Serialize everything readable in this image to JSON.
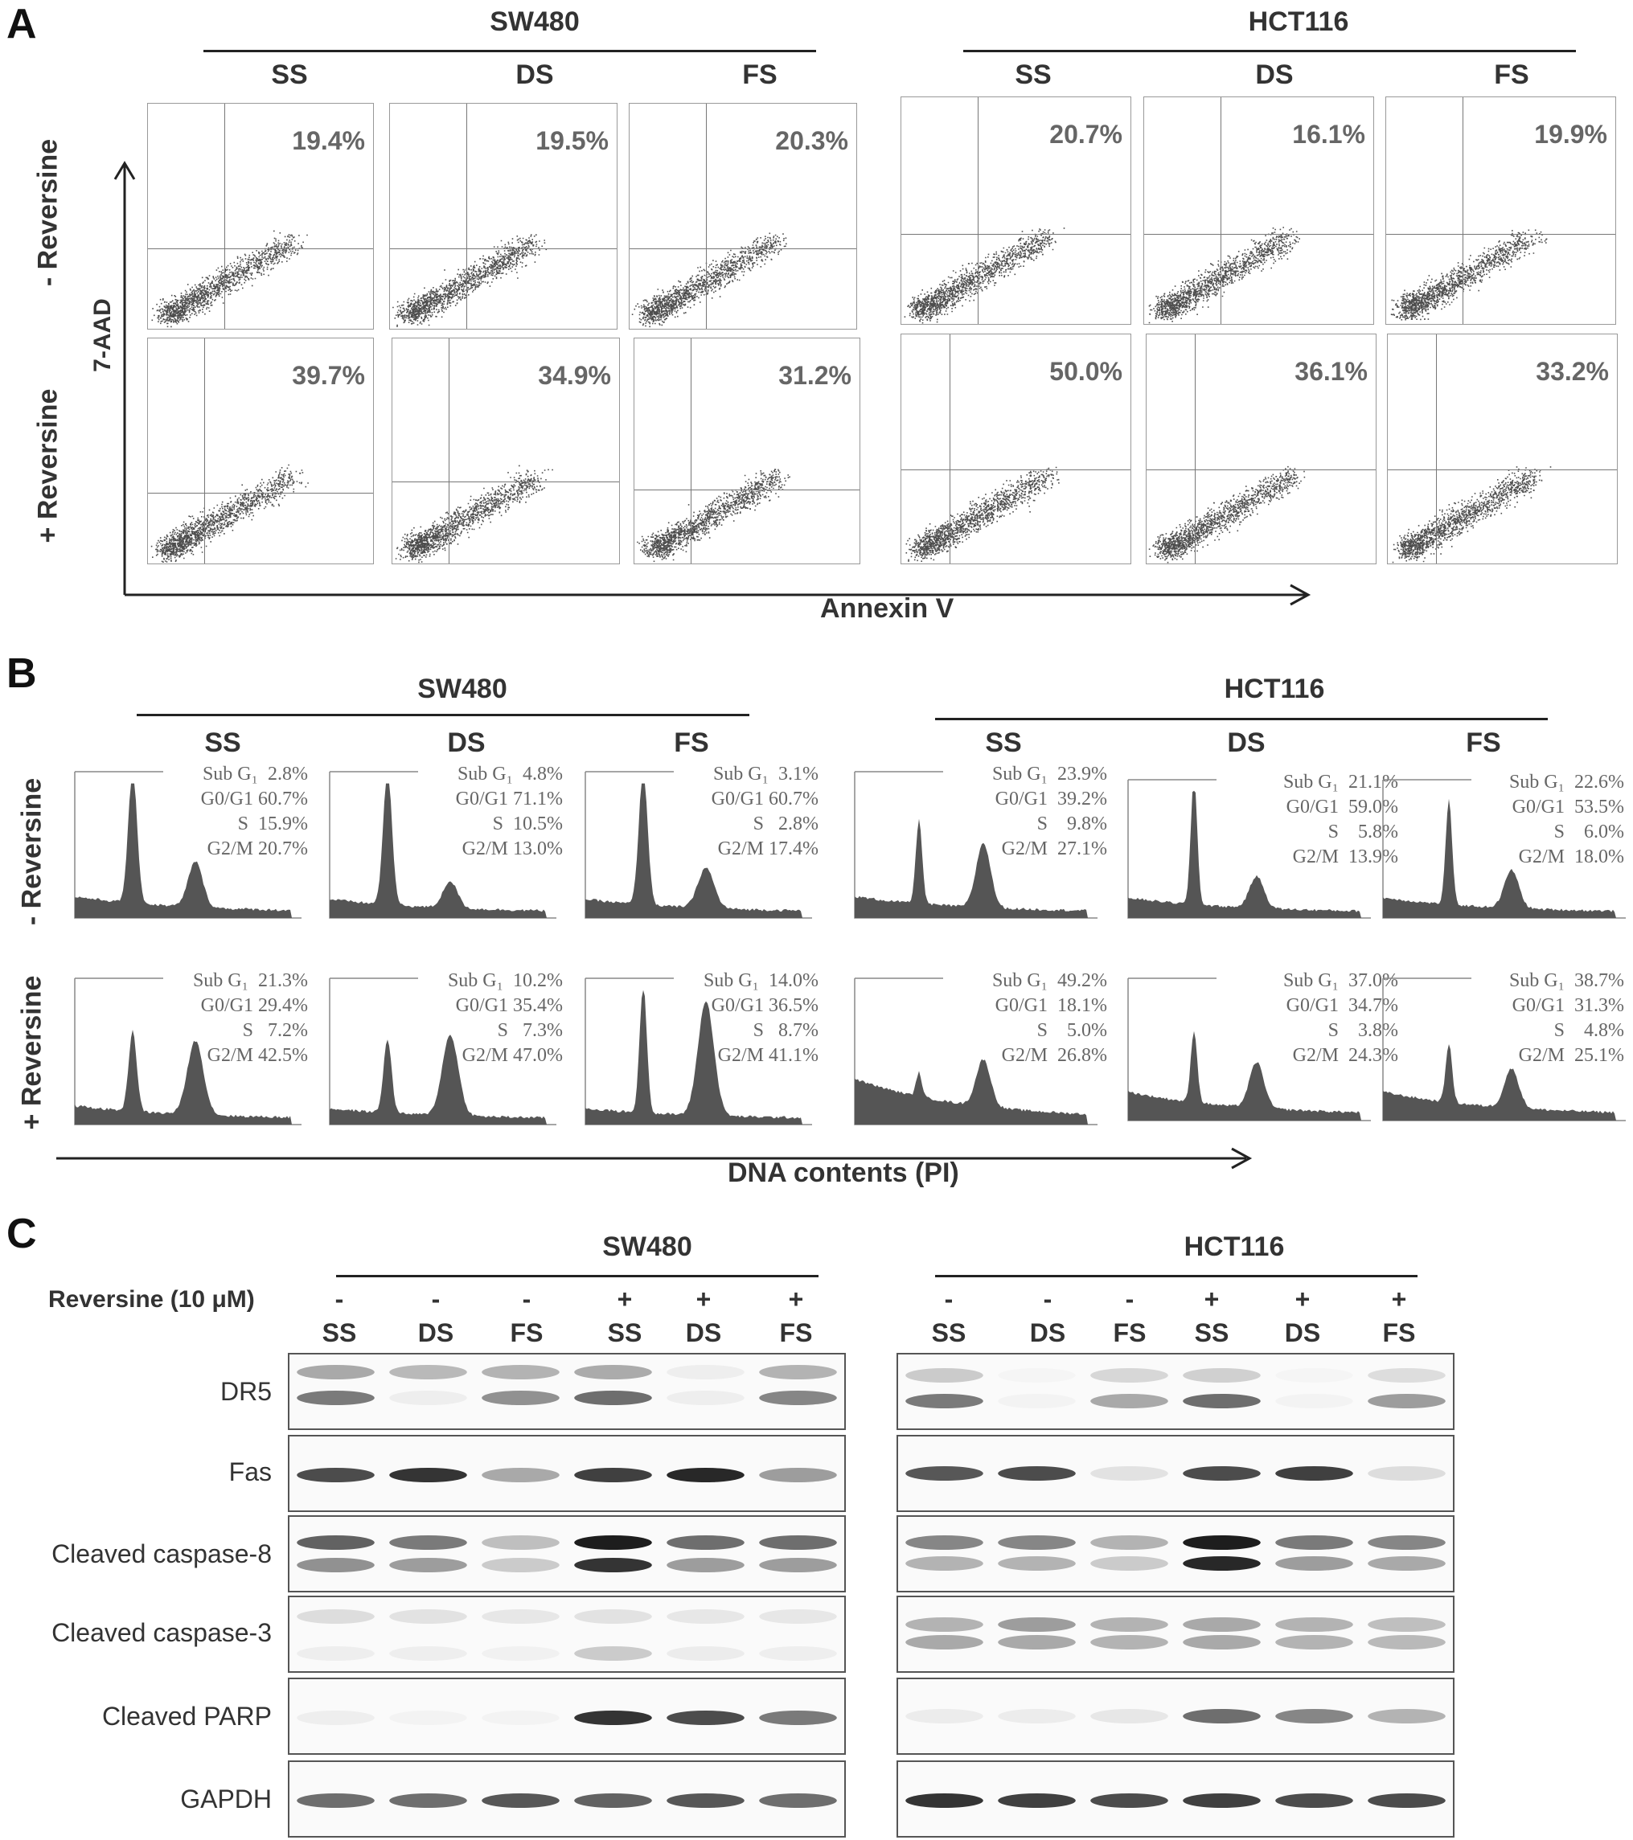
{
  "panelA": {
    "letter": "A",
    "groups": [
      "SW480",
      "HCT116"
    ],
    "columns": [
      "SS",
      "DS",
      "FS"
    ],
    "rows": [
      "- Reversine",
      "+ Reversine"
    ],
    "y_axis": "7-AAD",
    "x_axis": "Annexin V",
    "pct": {
      "sw480_minus": [
        "19.4%",
        "19.5%",
        "20.3%"
      ],
      "hct116_minus": [
        "20.7%",
        "16.1%",
        "19.9%"
      ],
      "sw480_plus": [
        "39.7%",
        "34.9%",
        "31.2%"
      ],
      "hct116_plus": [
        "50.0%",
        "36.1%",
        "33.2%"
      ]
    }
  },
  "panelB": {
    "letter": "B",
    "groups": [
      "SW480",
      "HCT116"
    ],
    "columns": [
      "SS",
      "DS",
      "FS"
    ],
    "rows": [
      "- Reversine",
      "+ Reversine"
    ],
    "x_axis": "DNA contents (PI)",
    "stats": {
      "sw480_minus": [
        "Sub G₁  2.8%\nG0/G1 60.7%\nS  15.9%\nG2/M 20.7%",
        "Sub G₁  4.8%\nG0/G1 71.1%\nS  10.5%\nG2/M 13.0%",
        "Sub G₁  3.1%\nG0/G1 60.7%\nS   2.8%\nG2/M 17.4%"
      ],
      "hct116_minus": [
        "Sub G₁  23.9%\nG0/G1  39.2%\nS    9.8%\nG2/M  27.1%",
        "Sub G₁  21.1%\nG0/G1  59.0%\nS    5.8%\nG2/M  13.9%",
        "Sub G₁  22.6%\nG0/G1  53.5%\nS    6.0%\nG2/M  18.0%"
      ],
      "sw480_plus": [
        "Sub G₁  21.3%\nG0/G1 29.4%\nS   7.2%\nG2/M 42.5%",
        "Sub G₁  10.2%\nG0/G1 35.4%\nS   7.3%\nG2/M 47.0%",
        "Sub G₁  14.0%\nG0/G1 36.5%\nS   8.7%\nG2/M 41.1%"
      ],
      "hct116_plus": [
        "Sub G₁  49.2%\nG0/G1  18.1%\nS    5.0%\nG2/M  26.8%",
        "Sub G₁  37.0%\nG0/G1  34.7%\nS    3.8%\nG2/M  24.3%",
        "Sub G₁  38.7%\nG0/G1  31.3%\nS    4.8%\nG2/M  25.1%"
      ]
    }
  },
  "panelC": {
    "letter": "C",
    "groups": [
      "SW480",
      "HCT116"
    ],
    "treatment_label": "Reversine  (10 μM)",
    "signs": [
      "-",
      "-",
      "-",
      "+",
      "+",
      "+"
    ],
    "lanes": [
      "SS",
      "DS",
      "FS",
      "SS",
      "DS",
      "FS"
    ],
    "blots": [
      "DR5",
      "Fas",
      "Cleaved caspase-8",
      "Cleaved caspase-3",
      "Cleaved PARP",
      "GAPDH"
    ]
  }
}
